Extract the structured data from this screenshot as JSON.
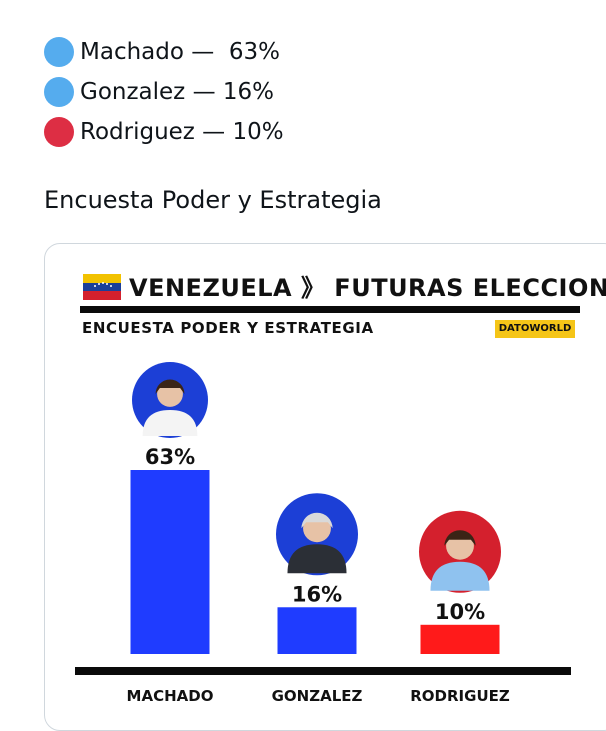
{
  "post": {
    "legend": [
      {
        "name": "Machado",
        "text": "Machado —  63%",
        "color": "#55acee"
      },
      {
        "name": "Gonzalez",
        "text": "Gonzalez — 16%",
        "color": "#55acee"
      },
      {
        "name": "Rodriguez",
        "text": "Rodriguez — 10%",
        "color": "#dd2e44"
      }
    ],
    "subtitle": "Encuesta Poder y Estrategia"
  },
  "card": {
    "title": "VENEZUELA 》 FUTURAS ELECCIONES",
    "subtitle": "ENCUESTA PODER Y ESTRATEGIA",
    "badge": "DATOWORLD",
    "flag_colors": [
      "#f2c200",
      "#1c3f99",
      "#d4202d"
    ]
  },
  "chart_data": {
    "type": "bar",
    "categories": [
      "MACHADO",
      "GONZALEZ",
      "RODRIGUEZ"
    ],
    "values": [
      63,
      16,
      10
    ],
    "value_labels": [
      "63%",
      "16%",
      "10%"
    ],
    "colors": [
      "#1f3cff",
      "#1f3cff",
      "#ff1a1a"
    ],
    "avatar_bg": [
      "#1c3fd6",
      "#1c3fd6",
      "#d4202d"
    ],
    "ylim": [
      0,
      63
    ],
    "title": "",
    "xlabel": "",
    "ylabel": ""
  }
}
